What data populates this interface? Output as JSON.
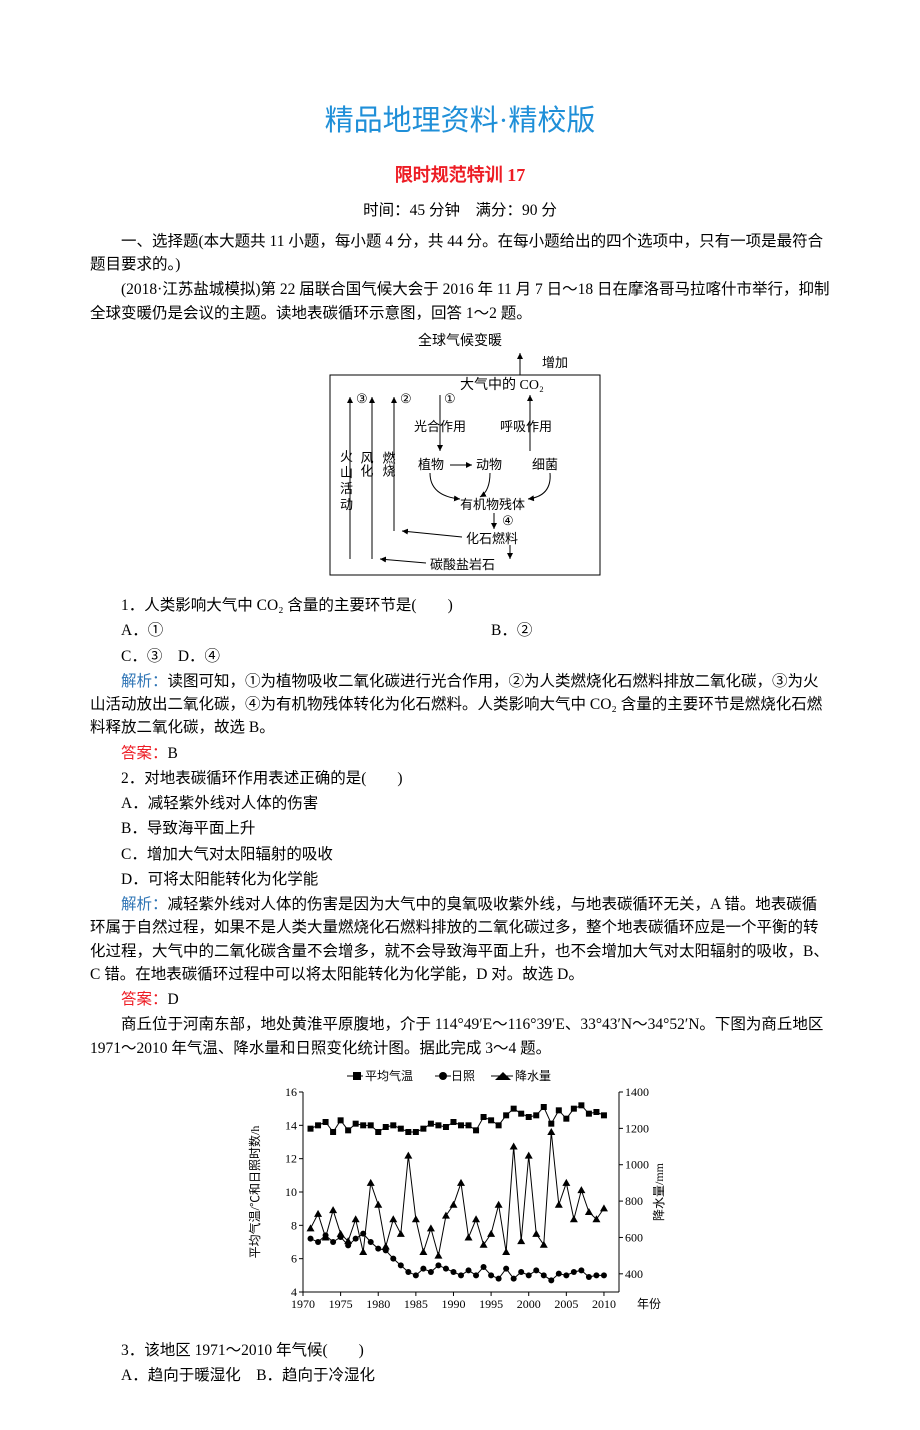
{
  "header": {
    "title_main": "精品地理资料·精校版",
    "title_sub": "限时规范特训 17",
    "time_full": "时间：45 分钟　满分：90 分"
  },
  "intro": {
    "section": "一、选择题(本大题共 11 小题，每小题 4 分，共 44 分。在每小题给出的四个选项中，只有一项是最符合题目要求的。)",
    "context1": "(2018·江苏盐城模拟)第 22 届联合国气候大会于 2016 年 11 月 7 日～18 日在摩洛哥马拉喀什市举行，抑制全球变暖仍是会议的主题。读地表碳循环示意图，回答 1～2 题。"
  },
  "diagram1": {
    "labels": {
      "top": "全球气候变暖",
      "inc": "增加",
      "co2": "大气中的 CO₂",
      "n1": "①",
      "n2": "②",
      "n3": "③",
      "n4": "④",
      "burn": "燃烧",
      "weather": "风化",
      "volcano_a": "火",
      "volcano_b": "山",
      "volcano_c": "活",
      "volcano_d": "动",
      "photo": "光合作用",
      "resp": "呼吸作用",
      "plant": "植物",
      "animal": "动物",
      "bacteria": "细菌",
      "organic": "有机物残体",
      "fossil": "化石燃料",
      "carbonate": "碳酸盐岩石"
    },
    "style": {
      "stroke": "#000000",
      "font_size": 14,
      "font_size_small": 12,
      "font_family": "SimSun"
    }
  },
  "q1": {
    "stem": "1．人类影响大气中 CO₂ 含量的主要环节是(　　)",
    "optA": "A．①",
    "optB": "B．②",
    "optC": "C．③　D．④",
    "analysis_label": "解析：",
    "analysis": "读图可知，①为植物吸收二氧化碳进行光合作用，②为人类燃烧化石燃料排放二氧化碳，③为火山活动放出二氧化碳，④为有机物残体转化为化石燃料。人类影响大气中 CO₂ 含量的主要环节是燃烧化石燃料释放二氧化碳，故选 B。",
    "answer_label": "答案：",
    "answer": "B"
  },
  "q2": {
    "stem": "2．对地表碳循环作用表述正确的是(　　)",
    "optA": "A．减轻紫外线对人体的伤害",
    "optB": "B．导致海平面上升",
    "optC": "C．增加大气对太阳辐射的吸收",
    "optD": "D．可将太阳能转化为化学能",
    "analysis_label": "解析：",
    "analysis": "减轻紫外线对人体的伤害是因为大气中的臭氧吸收紫外线，与地表碳循环无关，A 错。地表碳循环属于自然过程，如果不是人类大量燃烧化石燃料排放的二氧化碳过多，整个地表碳循环应是一个平衡的转化过程，大气中的二氧化碳含量不会增多，就不会导致海平面上升，也不会增加大气对太阳辐射的吸收，B、C 错。在地表碳循环过程中可以将太阳能转化为化学能，D 对。故选 D。",
    "answer_label": "答案：",
    "answer": "D"
  },
  "context2": {
    "text": "商丘位于河南东部，地处黄淮平原腹地，介于 114°49′E～116°39′E、33°43′N～34°52′N。下图为商丘地区 1971～2010 年气温、降水量和日照变化统计图。据此完成 3～4 题。"
  },
  "chart": {
    "type": "line_scatter",
    "legend": [
      "平均气温",
      "日照",
      "降水量"
    ],
    "markers": [
      "square",
      "circle",
      "triangle"
    ],
    "x_label": "年份",
    "y_left_label": "平均气温/℃和日照时数/h",
    "y_right_label": "降水量/mm",
    "x_ticks": [
      "1970",
      "1975",
      "1980",
      "1985",
      "1990",
      "1995",
      "2000",
      "2005",
      "2010"
    ],
    "x_min": 1970,
    "x_max": 2012,
    "y_left_ticks": [
      4,
      6,
      8,
      10,
      12,
      14,
      16
    ],
    "y_left_min": 4,
    "y_left_max": 16,
    "y_right_ticks": [
      400,
      600,
      800,
      1000,
      1200,
      1400
    ],
    "y_right_min": 300,
    "y_right_max": 1400,
    "colors": {
      "series": "#000000",
      "axis": "#000000",
      "text": "#000000",
      "bg": "#ffffff"
    },
    "font_size": 12,
    "data_temp": [
      [
        1971,
        13.8
      ],
      [
        1972,
        14.0
      ],
      [
        1973,
        14.2
      ],
      [
        1974,
        13.6
      ],
      [
        1975,
        14.3
      ],
      [
        1976,
        13.7
      ],
      [
        1977,
        14.1
      ],
      [
        1978,
        14.0
      ],
      [
        1979,
        14.0
      ],
      [
        1980,
        13.6
      ],
      [
        1981,
        13.9
      ],
      [
        1982,
        14.0
      ],
      [
        1983,
        13.8
      ],
      [
        1984,
        13.6
      ],
      [
        1985,
        13.6
      ],
      [
        1986,
        13.8
      ],
      [
        1987,
        14.1
      ],
      [
        1988,
        14.0
      ],
      [
        1989,
        13.9
      ],
      [
        1990,
        14.2
      ],
      [
        1991,
        14.0
      ],
      [
        1992,
        14.0
      ],
      [
        1993,
        13.7
      ],
      [
        1994,
        14.5
      ],
      [
        1995,
        14.3
      ],
      [
        1996,
        14.0
      ],
      [
        1997,
        14.6
      ],
      [
        1998,
        15.0
      ],
      [
        1999,
        14.7
      ],
      [
        2000,
        14.5
      ],
      [
        2001,
        14.6
      ],
      [
        2002,
        15.1
      ],
      [
        2003,
        14.1
      ],
      [
        2004,
        14.9
      ],
      [
        2005,
        14.4
      ],
      [
        2006,
        15.0
      ],
      [
        2007,
        15.2
      ],
      [
        2008,
        14.7
      ],
      [
        2009,
        14.8
      ],
      [
        2010,
        14.6
      ]
    ],
    "data_sun": [
      [
        1971,
        7.2
      ],
      [
        1972,
        7.0
      ],
      [
        1973,
        7.4
      ],
      [
        1974,
        7.0
      ],
      [
        1975,
        7.3
      ],
      [
        1976,
        6.8
      ],
      [
        1977,
        7.2
      ],
      [
        1978,
        7.5
      ],
      [
        1979,
        7.0
      ],
      [
        1980,
        6.6
      ],
      [
        1981,
        6.5
      ],
      [
        1982,
        6.0
      ],
      [
        1983,
        5.6
      ],
      [
        1984,
        5.2
      ],
      [
        1985,
        5.0
      ],
      [
        1986,
        5.4
      ],
      [
        1987,
        5.2
      ],
      [
        1988,
        5.6
      ],
      [
        1989,
        5.4
      ],
      [
        1990,
        5.2
      ],
      [
        1991,
        5.0
      ],
      [
        1992,
        5.3
      ],
      [
        1993,
        5.0
      ],
      [
        1994,
        5.5
      ],
      [
        1995,
        5.0
      ],
      [
        1996,
        4.8
      ],
      [
        1997,
        5.4
      ],
      [
        1998,
        4.8
      ],
      [
        1999,
        5.2
      ],
      [
        2000,
        5.0
      ],
      [
        2001,
        5.3
      ],
      [
        2002,
        5.0
      ],
      [
        2003,
        4.7
      ],
      [
        2004,
        5.1
      ],
      [
        2005,
        5.0
      ],
      [
        2006,
        5.2
      ],
      [
        2007,
        5.3
      ],
      [
        2008,
        4.9
      ],
      [
        2009,
        5.0
      ],
      [
        2010,
        5.0
      ]
    ],
    "data_precip": [
      [
        1971,
        650
      ],
      [
        1972,
        730
      ],
      [
        1973,
        600
      ],
      [
        1974,
        750
      ],
      [
        1975,
        620
      ],
      [
        1976,
        580
      ],
      [
        1977,
        700
      ],
      [
        1978,
        520
      ],
      [
        1979,
        900
      ],
      [
        1980,
        780
      ],
      [
        1981,
        550
      ],
      [
        1982,
        700
      ],
      [
        1983,
        620
      ],
      [
        1984,
        1050
      ],
      [
        1985,
        700
      ],
      [
        1986,
        520
      ],
      [
        1987,
        650
      ],
      [
        1988,
        500
      ],
      [
        1989,
        720
      ],
      [
        1990,
        780
      ],
      [
        1991,
        900
      ],
      [
        1992,
        600
      ],
      [
        1993,
        700
      ],
      [
        1994,
        560
      ],
      [
        1995,
        620
      ],
      [
        1996,
        780
      ],
      [
        1997,
        520
      ],
      [
        1998,
        1100
      ],
      [
        1999,
        580
      ],
      [
        2000,
        1050
      ],
      [
        2001,
        620
      ],
      [
        2002,
        560
      ],
      [
        2003,
        1180
      ],
      [
        2004,
        780
      ],
      [
        2005,
        900
      ],
      [
        2006,
        700
      ],
      [
        2007,
        860
      ],
      [
        2008,
        740
      ],
      [
        2009,
        700
      ],
      [
        2010,
        760
      ]
    ]
  },
  "q3": {
    "stem": "3．该地区 1971～2010 年气候(　　)",
    "optA": "A．趋向于暖湿化",
    "optB": "B．趋向于冷湿化"
  }
}
